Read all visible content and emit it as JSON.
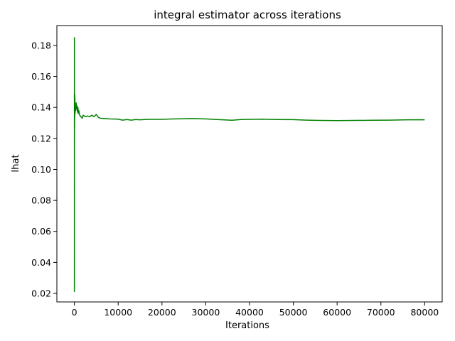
{
  "chart_data": {
    "type": "line",
    "title": "integral estimator across iterations",
    "xlabel": "Iterations",
    "ylabel": "Ihat",
    "xlim": [
      -4000,
      84000
    ],
    "ylim": [
      0.0145,
      0.1928
    ],
    "x_ticks": [
      0,
      10000,
      20000,
      30000,
      40000,
      50000,
      60000,
      70000,
      80000
    ],
    "x_tick_labels": [
      "0",
      "10000",
      "20000",
      "30000",
      "40000",
      "50000",
      "60000",
      "70000",
      "80000"
    ],
    "y_ticks": [
      0.02,
      0.04,
      0.06,
      0.08,
      0.1,
      0.12,
      0.14,
      0.16,
      0.18
    ],
    "y_tick_labels": [
      "0.02",
      "0.04",
      "0.06",
      "0.08",
      "0.10",
      "0.12",
      "0.14",
      "0.16",
      "0.18"
    ],
    "grid": false,
    "legend": "none",
    "series": [
      {
        "color": "#008000",
        "x": [
          1,
          5,
          10,
          20,
          40,
          60,
          80,
          100,
          150,
          200,
          300,
          400,
          500,
          600,
          700,
          800,
          900,
          1000,
          1200,
          1500,
          1800,
          2000,
          2500,
          3000,
          3500,
          4000,
          4500,
          5000,
          5500,
          6000,
          7000,
          8000,
          9000,
          10000,
          11000,
          12000,
          13000,
          14000,
          15000,
          17000,
          20000,
          22000,
          25000,
          27000,
          30000,
          33000,
          36000,
          38000,
          40000,
          43000,
          46000,
          50000,
          53000,
          56000,
          60000,
          64000,
          68000,
          72000,
          76000,
          80000
        ],
        "y": [
          0.021,
          0.185,
          0.12,
          0.15,
          0.127,
          0.145,
          0.133,
          0.148,
          0.136,
          0.141,
          0.138,
          0.143,
          0.139,
          0.141,
          0.137,
          0.14,
          0.136,
          0.138,
          0.135,
          0.134,
          0.133,
          0.135,
          0.134,
          0.1345,
          0.134,
          0.135,
          0.134,
          0.1355,
          0.1335,
          0.133,
          0.1328,
          0.1326,
          0.1325,
          0.1324,
          0.1318,
          0.1322,
          0.1318,
          0.1322,
          0.132,
          0.1323,
          0.1323,
          0.1325,
          0.1327,
          0.1328,
          0.1326,
          0.1321,
          0.1317,
          0.1322,
          0.1323,
          0.1324,
          0.1322,
          0.1321,
          0.1318,
          0.1316,
          0.1315,
          0.1316,
          0.1317,
          0.1318,
          0.132,
          0.132
        ]
      }
    ]
  }
}
